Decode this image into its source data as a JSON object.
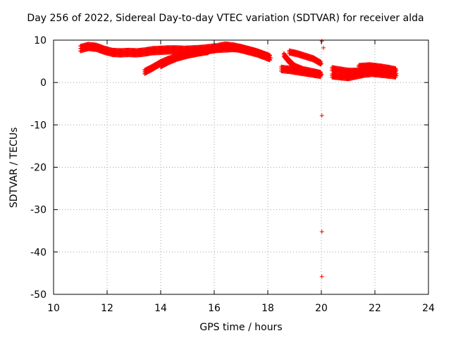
{
  "chart_data": {
    "type": "scatter",
    "title": "Day 256 of 2022, Sidereal Day-to-day VTEC variation (SDTVAR) for receiver alda",
    "xlabel": "GPS time / hours",
    "ylabel": "SDTVAR / TECUs",
    "xlim": [
      10,
      24
    ],
    "ylim": [
      -50,
      10
    ],
    "xticks": [
      10,
      12,
      14,
      16,
      18,
      20,
      22,
      24
    ],
    "yticks": [
      -50,
      -40,
      -30,
      -20,
      -10,
      0,
      10
    ],
    "grid": true,
    "marker": "+",
    "series_color": "#ff0000",
    "tracks": [
      {
        "name": "track-1",
        "x": [
          11.0,
          11.3,
          11.6,
          11.9,
          12.2,
          12.5,
          12.8,
          13.1,
          13.4,
          13.7,
          14.0,
          14.3,
          14.6,
          14.9,
          15.2,
          15.5,
          15.8,
          16.1,
          16.4,
          16.7,
          17.0,
          17.3,
          17.6,
          17.9,
          18.1
        ],
        "y": [
          8.0,
          8.5,
          8.3,
          7.6,
          7.1,
          7.0,
          7.1,
          7.0,
          7.2,
          7.5,
          7.6,
          7.7,
          7.7,
          7.6,
          7.7,
          7.8,
          8.0,
          8.2,
          8.6,
          8.4,
          8.0,
          7.5,
          7.0,
          6.3,
          5.8
        ],
        "width": 1.2
      },
      {
        "name": "track-2",
        "x": [
          13.4,
          13.7,
          14.0,
          14.3,
          14.6,
          14.9,
          15.2,
          15.5,
          15.8,
          16.1,
          16.4,
          16.7,
          17.0,
          17.3,
          17.6,
          17.9,
          18.1
        ],
        "y": [
          2.5,
          3.5,
          4.6,
          5.4,
          6.0,
          6.4,
          6.9,
          7.3,
          7.6,
          7.9,
          8.0,
          8.1,
          8.0,
          7.6,
          7.0,
          6.4,
          5.8
        ],
        "width": 0.9
      },
      {
        "name": "track-3",
        "x": [
          14.0,
          14.3,
          14.6,
          15.0,
          15.4,
          15.8
        ],
        "y": [
          4.0,
          5.0,
          5.8,
          6.5,
          7.0,
          7.4
        ],
        "width": 0.8
      },
      {
        "name": "track-4",
        "x": [
          18.8,
          19.1,
          19.4,
          19.7,
          20.0
        ],
        "y": [
          7.2,
          6.8,
          6.2,
          5.6,
          4.5
        ],
        "width": 0.7
      },
      {
        "name": "track-5",
        "x": [
          18.6,
          18.8,
          19.0,
          19.3,
          19.6,
          19.9,
          20.0
        ],
        "y": [
          6.5,
          5.0,
          3.8,
          3.0,
          2.6,
          2.2,
          2.0
        ],
        "width": 0.8
      },
      {
        "name": "track-6",
        "x": [
          18.5,
          18.8,
          19.1,
          19.4,
          19.7,
          20.0
        ],
        "y": [
          3.2,
          3.0,
          2.7,
          2.4,
          2.1,
          1.8
        ],
        "width": 1.0
      },
      {
        "name": "track-7",
        "x": [
          20.4,
          20.7,
          21.0,
          21.3,
          21.6,
          21.9,
          22.2,
          22.5,
          22.8
        ],
        "y": [
          3.2,
          2.9,
          2.6,
          2.6,
          2.7,
          2.8,
          2.7,
          2.4,
          2.1
        ],
        "width": 0.8
      },
      {
        "name": "track-8",
        "x": [
          20.4,
          20.7,
          21.0,
          21.3,
          21.6,
          21.9,
          22.2,
          22.5,
          22.8
        ],
        "y": [
          1.6,
          1.4,
          1.2,
          1.6,
          2.0,
          2.2,
          2.0,
          1.8,
          1.6
        ],
        "width": 0.8
      },
      {
        "name": "track-9",
        "x": [
          21.4,
          21.8,
          22.2,
          22.5,
          22.8
        ],
        "y": [
          3.8,
          4.0,
          3.7,
          3.4,
          3.0
        ],
        "width": 0.6
      }
    ],
    "outliers": [
      {
        "x": 20.02,
        "y": 9.8
      },
      {
        "x": 20.08,
        "y": 8.2
      },
      {
        "x": 20.02,
        "y": -7.8
      },
      {
        "x": 20.02,
        "y": -35.2
      },
      {
        "x": 20.02,
        "y": -45.8
      }
    ]
  }
}
